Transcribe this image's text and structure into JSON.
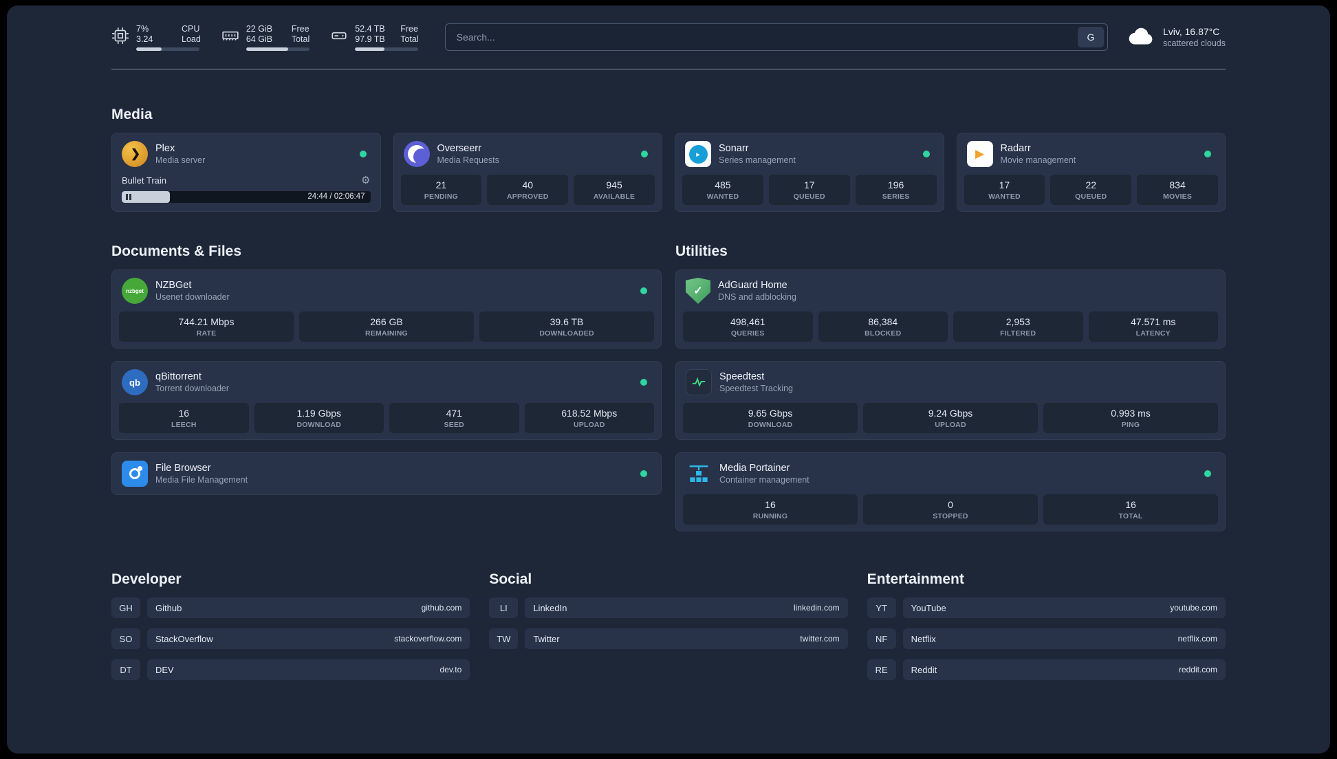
{
  "colors": {
    "status_online": "#2fd6a0",
    "plex": "#e5a00d",
    "overseerr": "#5d5fd6",
    "sonarr": "#199fd8",
    "radarr": "#f0a22b",
    "nzbget": "#46a839",
    "qbittorrent": "#2e6cc0",
    "adguard": "#5fae6e",
    "portainer": "#2fb7e8",
    "background": "#1d2738",
    "card": "#28334a"
  },
  "topbar": {
    "cpu": {
      "value1": "7%",
      "label1": "CPU",
      "value2": "3.24",
      "label2": "Load",
      "bar_percent": 40
    },
    "memory": {
      "value1": "22 GiB",
      "label1": "Free",
      "value2": "64 GiB",
      "label2": "Total",
      "bar_percent": 66
    },
    "disk": {
      "value1": "52.4 TB",
      "label1": "Free",
      "value2": "97.9 TB",
      "label2": "Total",
      "bar_percent": 47
    },
    "search": {
      "placeholder": "Search...",
      "button_label": "G"
    },
    "weather": {
      "location": "Lviv, 16.87°C",
      "condition": "scattered clouds"
    }
  },
  "sections": {
    "media": "Media",
    "documents": "Documents & Files",
    "utilities": "Utilities",
    "developer": "Developer",
    "social": "Social",
    "entertainment": "Entertainment"
  },
  "apps": {
    "plex": {
      "name": "Plex",
      "desc": "Media server",
      "now_playing": "Bullet Train",
      "time": "24:44 / 02:06:47",
      "progress_percent": 19.5
    },
    "overseerr": {
      "name": "Overseerr",
      "desc": "Media Requests",
      "stats": [
        {
          "value": "21",
          "label": "PENDING"
        },
        {
          "value": "40",
          "label": "APPROVED"
        },
        {
          "value": "945",
          "label": "AVAILABLE"
        }
      ]
    },
    "sonarr": {
      "name": "Sonarr",
      "desc": "Series management",
      "stats": [
        {
          "value": "485",
          "label": "WANTED"
        },
        {
          "value": "17",
          "label": "QUEUED"
        },
        {
          "value": "196",
          "label": "SERIES"
        }
      ]
    },
    "radarr": {
      "name": "Radarr",
      "desc": "Movie management",
      "stats": [
        {
          "value": "17",
          "label": "WANTED"
        },
        {
          "value": "22",
          "label": "QUEUED"
        },
        {
          "value": "834",
          "label": "MOVIES"
        }
      ]
    },
    "nzbget": {
      "name": "NZBGet",
      "desc": "Usenet downloader",
      "icon_text": "nzbget",
      "stats": [
        {
          "value": "744.21 Mbps",
          "label": "RATE"
        },
        {
          "value": "266 GB",
          "label": "REMAINING"
        },
        {
          "value": "39.6 TB",
          "label": "DOWNLOADED"
        }
      ]
    },
    "qbittorrent": {
      "name": "qBittorrent",
      "desc": "Torrent downloader",
      "icon_text": "qb",
      "stats": [
        {
          "value": "16",
          "label": "LEECH"
        },
        {
          "value": "1.19 Gbps",
          "label": "DOWNLOAD"
        },
        {
          "value": "471",
          "label": "SEED"
        },
        {
          "value": "618.52 Mbps",
          "label": "UPLOAD"
        }
      ]
    },
    "filebrowser": {
      "name": "File Browser",
      "desc": "Media File Management"
    },
    "adguard": {
      "name": "AdGuard Home",
      "desc": "DNS and adblocking",
      "stats": [
        {
          "value": "498,461",
          "label": "QUERIES"
        },
        {
          "value": "86,384",
          "label": "BLOCKED"
        },
        {
          "value": "2,953",
          "label": "FILTERED"
        },
        {
          "value": "47.571 ms",
          "label": "LATENCY"
        }
      ]
    },
    "speedtest": {
      "name": "Speedtest",
      "desc": "Speedtest Tracking",
      "stats": [
        {
          "value": "9.65 Gbps",
          "label": "DOWNLOAD"
        },
        {
          "value": "9.24 Gbps",
          "label": "UPLOAD"
        },
        {
          "value": "0.993 ms",
          "label": "PING"
        }
      ]
    },
    "portainer": {
      "name": "Media Portainer",
      "desc": "Container management",
      "stats": [
        {
          "value": "16",
          "label": "RUNNING"
        },
        {
          "value": "0",
          "label": "STOPPED"
        },
        {
          "value": "16",
          "label": "TOTAL"
        }
      ]
    }
  },
  "bookmarks": {
    "developer": [
      {
        "abbr": "GH",
        "name": "Github",
        "domain": "github.com"
      },
      {
        "abbr": "SO",
        "name": "StackOverflow",
        "domain": "stackoverflow.com"
      },
      {
        "abbr": "DT",
        "name": "DEV",
        "domain": "dev.to"
      }
    ],
    "social": [
      {
        "abbr": "LI",
        "name": "LinkedIn",
        "domain": "linkedin.com"
      },
      {
        "abbr": "TW",
        "name": "Twitter",
        "domain": "twitter.com"
      }
    ],
    "entertainment": [
      {
        "abbr": "YT",
        "name": "YouTube",
        "domain": "youtube.com"
      },
      {
        "abbr": "NF",
        "name": "Netflix",
        "domain": "netflix.com"
      },
      {
        "abbr": "RE",
        "name": "Reddit",
        "domain": "reddit.com"
      }
    ]
  }
}
